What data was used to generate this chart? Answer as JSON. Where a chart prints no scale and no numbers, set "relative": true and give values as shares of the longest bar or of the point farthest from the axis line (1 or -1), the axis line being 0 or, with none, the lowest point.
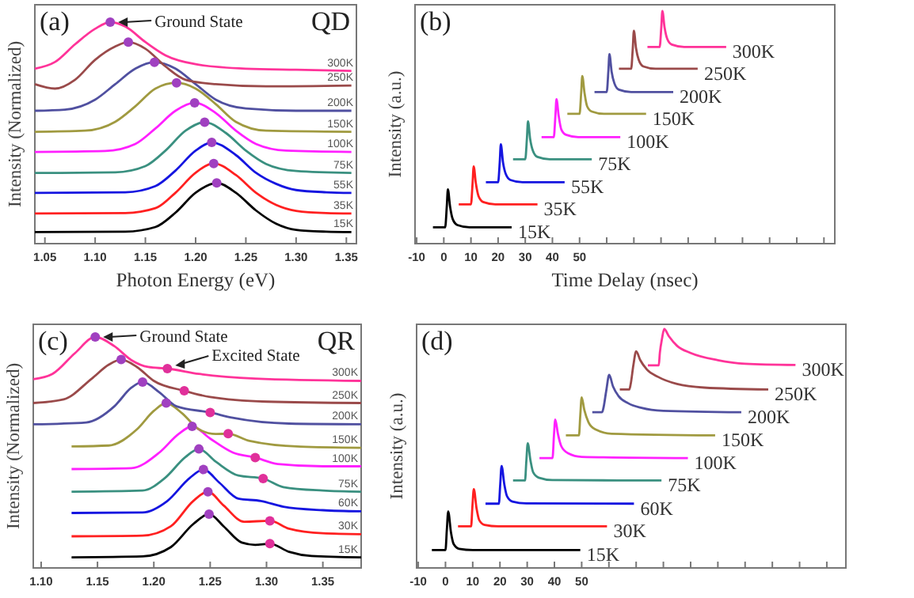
{
  "chart_data": [
    {
      "type": "line",
      "relative": true,
      "xlabel": "Photon Energy (eV)",
      "ylabel": "Intensity (Normalized)",
      "xlim": [
        1.04,
        1.36
      ],
      "xticks": [
        1.05,
        {
          "value": 1.1,
          "label": "1.10"
        },
        1.15,
        {
          "value": 1.2,
          "label": "1.20"
        },
        1.25,
        {
          "value": 1.3,
          "label": "1.30"
        },
        1.35
      ],
      "legend": false,
      "grid": false,
      "annotations": [
        "(a)",
        "QD",
        {
          "text": "Ground State",
          "x": 1.115,
          "y": 1.0
        }
      ],
      "series": [
        {
          "name": "15K",
          "color": "#000000",
          "x": [
            1.04,
            1.13,
            1.16,
            1.18,
            1.2,
            1.221,
            1.24,
            1.26,
            1.28,
            1.3,
            1.33,
            1.355
          ],
          "values": [
            0.052,
            0.054,
            0.075,
            0.14,
            0.23,
            0.274,
            0.23,
            0.15,
            0.09,
            0.062,
            0.054,
            0.052
          ]
        },
        {
          "name": "35K",
          "color": "#ff2020",
          "x": [
            1.04,
            1.13,
            1.16,
            1.18,
            1.2,
            1.218,
            1.24,
            1.26,
            1.28,
            1.3,
            1.33,
            1.355
          ],
          "values": [
            0.136,
            0.138,
            0.16,
            0.23,
            0.32,
            0.362,
            0.31,
            0.23,
            0.175,
            0.148,
            0.138,
            0.136
          ]
        },
        {
          "name": "55K",
          "color": "#1515e0",
          "x": [
            1.04,
            1.13,
            1.16,
            1.18,
            1.2,
            1.216,
            1.24,
            1.26,
            1.28,
            1.3,
            1.33,
            1.355
          ],
          "values": [
            0.229,
            0.232,
            0.26,
            0.33,
            0.42,
            0.457,
            0.4,
            0.32,
            0.27,
            0.242,
            0.232,
            0.229
          ]
        },
        {
          "name": "75K",
          "color": "#3a9080",
          "x": [
            1.04,
            1.12,
            1.15,
            1.17,
            1.19,
            1.209,
            1.23,
            1.25,
            1.27,
            1.3,
            1.355
          ],
          "values": [
            0.319,
            0.322,
            0.35,
            0.42,
            0.51,
            0.548,
            0.5,
            0.42,
            0.36,
            0.328,
            0.319
          ]
        },
        {
          "name": "100K",
          "color": "#ff20ff",
          "x": [
            1.04,
            1.11,
            1.14,
            1.16,
            1.18,
            1.199,
            1.22,
            1.24,
            1.26,
            1.29,
            1.355
          ],
          "values": [
            0.414,
            0.418,
            0.45,
            0.52,
            0.6,
            0.636,
            0.59,
            0.51,
            0.45,
            0.42,
            0.414
          ]
        },
        {
          "name": "150K",
          "color": "#a09a40",
          "x": [
            1.04,
            1.09,
            1.12,
            1.14,
            1.16,
            1.181,
            1.2,
            1.22,
            1.24,
            1.27,
            1.355
          ],
          "values": [
            0.505,
            0.51,
            0.55,
            0.62,
            0.7,
            0.726,
            0.7,
            0.63,
            0.55,
            0.51,
            0.505
          ]
        },
        {
          "name": "200K",
          "color": "#5050a0",
          "x": [
            1.04,
            1.07,
            1.1,
            1.12,
            1.14,
            1.159,
            1.18,
            1.2,
            1.22,
            1.25,
            1.3,
            1.355
          ],
          "values": [
            0.6,
            0.605,
            0.65,
            0.72,
            0.79,
            0.819,
            0.79,
            0.72,
            0.65,
            0.61,
            0.6,
            0.6
          ]
        },
        {
          "name": "250K",
          "color": "#9a4a4a",
          "x": [
            1.04,
            1.06,
            1.08,
            1.1,
            1.12,
            1.133,
            1.15,
            1.17,
            1.19,
            1.22,
            1.27,
            1.355
          ],
          "values": [
            0.72,
            0.7,
            0.74,
            0.83,
            0.89,
            0.91,
            0.88,
            0.8,
            0.74,
            0.72,
            0.71,
            0.714
          ]
        },
        {
          "name": "300K",
          "color": "#ff3399",
          "x": [
            1.04,
            1.06,
            1.08,
            1.1,
            1.115,
            1.13,
            1.15,
            1.17,
            1.2,
            1.25,
            1.3,
            1.355
          ],
          "values": [
            0.79,
            0.82,
            0.9,
            0.97,
            1.0,
            0.98,
            0.91,
            0.85,
            0.81,
            0.79,
            0.785,
            0.78
          ]
        },
        {
          "type": "scatter",
          "marker": "circle",
          "color": "#a040c0",
          "x": [
            1.221,
            1.218,
            1.216,
            1.209,
            1.199,
            1.181,
            1.159,
            1.133,
            1.115
          ],
          "values": [
            0.274,
            0.362,
            0.457,
            0.548,
            0.636,
            0.726,
            0.819,
            0.91,
            1.0
          ]
        }
      ]
    },
    {
      "type": "line",
      "relative": true,
      "xlabel": "Time Delay (nsec)",
      "ylabel": "Intensity (a.u.)",
      "xlim": [
        -10.6,
        144
      ],
      "xticks": [
        -10,
        0,
        10,
        20,
        30,
        40,
        50,
        {
          "value": 60,
          "label": null
        },
        {
          "value": 70,
          "label": null
        },
        {
          "value": 80,
          "label": null
        },
        {
          "value": 90,
          "label": null
        },
        {
          "value": 100,
          "label": null
        },
        {
          "value": 110,
          "label": null
        },
        {
          "value": 120,
          "label": null
        },
        {
          "value": 130,
          "label": null
        },
        {
          "value": 140,
          "label": null
        }
      ],
      "legend": false,
      "grid": false,
      "annotations": [
        "(b)"
      ],
      "series": [
        {
          "name": "15K",
          "color": "#000000",
          "x": [
            -4,
            0.5,
            1.1,
            1.5,
            2.3,
            3.3,
            5,
            9.5,
            25
          ],
          "values": [
            0.07,
            0.07,
            0.16,
            0.233,
            0.16,
            0.105,
            0.08,
            0.07,
            0.07
          ]
        },
        {
          "name": "35K",
          "color": "#ff2020",
          "x": [
            5.5,
            10,
            10.6,
            11,
            11.8,
            12.8,
            14.5,
            19,
            34.5
          ],
          "values": [
            0.169,
            0.169,
            0.26,
            0.332,
            0.26,
            0.204,
            0.179,
            0.169,
            0.169
          ]
        },
        {
          "name": "55K",
          "color": "#1515e0",
          "x": [
            15.5,
            20,
            20.6,
            21,
            21.8,
            22.8,
            24.5,
            29,
            44.5
          ],
          "values": [
            0.264,
            0.264,
            0.35,
            0.427,
            0.35,
            0.3,
            0.274,
            0.264,
            0.264
          ]
        },
        {
          "name": "75K",
          "color": "#3a9080",
          "x": [
            25.5,
            30,
            30.6,
            31,
            31.8,
            32.8,
            34.5,
            39,
            54.5
          ],
          "values": [
            0.363,
            0.363,
            0.45,
            0.526,
            0.45,
            0.4,
            0.373,
            0.363,
            0.363
          ]
        },
        {
          "name": "100K",
          "color": "#ff20ff",
          "x": [
            36,
            40.5,
            41.1,
            41.5,
            42.3,
            43.3,
            45,
            49.5,
            65
          ],
          "values": [
            0.458,
            0.458,
            0.55,
            0.621,
            0.55,
            0.49,
            0.468,
            0.458,
            0.458
          ]
        },
        {
          "name": "150K",
          "color": "#a09a40",
          "x": [
            45.5,
            50,
            50.6,
            51,
            51.8,
            52.8,
            54.5,
            59,
            74.5
          ],
          "values": [
            0.558,
            0.558,
            0.65,
            0.721,
            0.65,
            0.59,
            0.568,
            0.558,
            0.558
          ]
        },
        {
          "name": "200K",
          "color": "#5050a0",
          "x": [
            55.5,
            60,
            60.6,
            61,
            61.8,
            62.8,
            64.5,
            69,
            84.5
          ],
          "values": [
            0.652,
            0.652,
            0.74,
            0.815,
            0.74,
            0.69,
            0.662,
            0.652,
            0.652
          ]
        },
        {
          "name": "250K",
          "color": "#9a4a4a",
          "x": [
            64.5,
            69,
            69.6,
            70,
            70.8,
            71.8,
            73.5,
            78,
            93.5
          ],
          "values": [
            0.752,
            0.752,
            0.84,
            0.915,
            0.84,
            0.79,
            0.762,
            0.752,
            0.752
          ]
        },
        {
          "name": "300K",
          "color": "#ff3399",
          "x": [
            75,
            79.5,
            80.1,
            80.5,
            81.3,
            82.3,
            84,
            88.5,
            104
          ],
          "values": [
            0.846,
            0.846,
            0.93,
            1.0,
            0.93,
            0.88,
            0.856,
            0.846,
            0.846
          ]
        }
      ]
    },
    {
      "type": "line",
      "relative": true,
      "ylabel": "Intensity (Normalized)",
      "xlim": [
        1.093,
        1.384
      ],
      "xticks": [
        {
          "value": 1.1,
          "label": "1.10"
        },
        1.15,
        {
          "value": 1.2,
          "label": "1.20"
        },
        1.25,
        {
          "value": 1.3,
          "label": "1.30"
        },
        1.35
      ],
      "legend": false,
      "grid": false,
      "annotations": [
        "(c)",
        "QR",
        {
          "text": "Ground State",
          "x": 1.148,
          "y": 1.0
        },
        {
          "text": "Excited State",
          "x": 1.212,
          "y": 0.863
        }
      ],
      "series": [
        {
          "name": "15K",
          "color": "#000000",
          "x": [
            1.127,
            1.19,
            1.215,
            1.235,
            1.249,
            1.262,
            1.278,
            1.29,
            1.303,
            1.32,
            1.34,
            1.384
          ],
          "values": [
            0.046,
            0.05,
            0.09,
            0.19,
            0.233,
            0.18,
            0.11,
            0.1,
            0.105,
            0.07,
            0.052,
            0.046
          ]
        },
        {
          "name": "30K",
          "color": "#ff2020",
          "x": [
            1.127,
            1.19,
            1.215,
            1.235,
            1.248,
            1.262,
            1.28,
            1.303,
            1.32,
            1.35,
            1.384
          ],
          "values": [
            0.137,
            0.14,
            0.18,
            0.29,
            0.33,
            0.27,
            0.2,
            0.204,
            0.17,
            0.15,
            0.146
          ]
        },
        {
          "name": "60K",
          "color": "#1515e0",
          "x": [
            1.127,
            1.19,
            1.212,
            1.232,
            1.244,
            1.258,
            1.275,
            1.295,
            1.315,
            1.35,
            1.384
          ],
          "values": [
            0.238,
            0.24,
            0.29,
            0.39,
            0.426,
            0.37,
            0.3,
            0.29,
            0.265,
            0.25,
            0.245
          ]
        },
        {
          "name": "75K",
          "color": "#3a9080",
          "x": [
            1.127,
            1.19,
            1.21,
            1.228,
            1.24,
            1.255,
            1.275,
            1.297,
            1.315,
            1.35,
            1.384
          ],
          "values": [
            0.33,
            0.335,
            0.39,
            0.48,
            0.515,
            0.46,
            0.4,
            0.387,
            0.35,
            0.335,
            0.33
          ]
        },
        {
          "name": "100K",
          "color": "#ff20ff",
          "x": [
            1.127,
            1.18,
            1.205,
            1.222,
            1.234,
            1.25,
            1.27,
            1.29,
            1.31,
            1.35,
            1.384
          ],
          "values": [
            0.428,
            0.432,
            0.5,
            0.58,
            0.613,
            0.56,
            0.5,
            0.478,
            0.45,
            0.44,
            0.44
          ]
        },
        {
          "name": "150K",
          "color": "#a09a40",
          "x": [
            1.127,
            1.16,
            1.185,
            1.2,
            1.211,
            1.225,
            1.24,
            1.255,
            1.266,
            1.285,
            1.33,
            1.384
          ],
          "values": [
            0.526,
            0.53,
            0.6,
            0.68,
            0.714,
            0.67,
            0.6,
            0.58,
            0.581,
            0.55,
            0.525,
            0.52
          ]
        },
        {
          "name": "200K",
          "color": "#5050a0",
          "x": [
            1.093,
            1.14,
            1.165,
            1.18,
            1.19,
            1.205,
            1.22,
            1.25,
            1.27,
            1.32,
            1.384
          ],
          "values": [
            0.622,
            0.63,
            0.7,
            0.78,
            0.805,
            0.76,
            0.7,
            0.673,
            0.65,
            0.625,
            0.622
          ]
        },
        {
          "name": "250K",
          "color": "#9a4a4a",
          "x": [
            1.093,
            1.12,
            1.145,
            1.16,
            1.171,
            1.185,
            1.2,
            1.227,
            1.25,
            1.3,
            1.384
          ],
          "values": [
            0.714,
            0.73,
            0.82,
            0.88,
            0.902,
            0.87,
            0.81,
            0.767,
            0.74,
            0.72,
            0.714
          ]
        },
        {
          "name": "300K",
          "color": "#ff3399",
          "x": [
            1.093,
            1.11,
            1.13,
            1.148,
            1.165,
            1.18,
            1.195,
            1.212,
            1.24,
            1.29,
            1.384
          ],
          "values": [
            0.817,
            0.84,
            0.93,
            1.0,
            0.96,
            0.9,
            0.87,
            0.863,
            0.84,
            0.82,
            0.81
          ]
        },
        {
          "type": "scatter",
          "marker": "circle",
          "color": "#a040c0",
          "x": [
            1.249,
            1.248,
            1.244,
            1.24,
            1.234,
            1.211,
            1.19,
            1.171,
            1.148
          ],
          "values": [
            0.233,
            0.33,
            0.426,
            0.515,
            0.613,
            0.714,
            0.805,
            0.902,
            1.0
          ]
        },
        {
          "type": "scatter",
          "marker": "circle",
          "color": "#e0309a",
          "x": [
            1.303,
            1.303,
            1.297,
            1.29,
            1.266,
            1.25,
            1.227,
            1.212
          ],
          "values": [
            0.105,
            0.204,
            0.387,
            0.478,
            0.581,
            0.673,
            0.767,
            0.863
          ]
        }
      ]
    },
    {
      "type": "line",
      "relative": true,
      "ylabel": "Intensity (a.u.)",
      "xlim": [
        -10.6,
        147
      ],
      "xticks": [
        -10,
        0,
        10,
        20,
        30,
        40,
        50,
        {
          "value": 60,
          "label": null
        },
        {
          "value": 70,
          "label": null
        },
        {
          "value": 80,
          "label": null
        },
        {
          "value": 90,
          "label": null
        },
        {
          "value": 100,
          "label": null
        },
        {
          "value": 110,
          "label": null
        },
        {
          "value": 120,
          "label": null
        },
        {
          "value": 130,
          "label": null
        },
        {
          "value": 140,
          "label": null
        }
      ],
      "legend": false,
      "grid": false,
      "annotations": [
        "(d)"
      ],
      "series": [
        {
          "name": "15K",
          "color": "#000000",
          "x": [
            -5,
            0,
            0.5,
            1,
            2,
            3,
            5,
            10,
            49.5
          ],
          "values": [
            0.075,
            0.075,
            0.16,
            0.236,
            0.15,
            0.1,
            0.08,
            0.075,
            0.075
          ]
        },
        {
          "name": "30K",
          "color": "#ff2020",
          "x": [
            4.6,
            9.4,
            9.9,
            10.4,
            11.4,
            12.4,
            14.4,
            19.4,
            59.3
          ],
          "values": [
            0.174,
            0.174,
            0.26,
            0.33,
            0.25,
            0.2,
            0.18,
            0.174,
            0.174
          ]
        },
        {
          "name": "60K",
          "color": "#1515e0",
          "x": [
            14.7,
            19.6,
            20.1,
            20.6,
            21.6,
            22.6,
            24.6,
            29.6,
            69.2
          ],
          "values": [
            0.269,
            0.269,
            0.35,
            0.427,
            0.35,
            0.3,
            0.278,
            0.27,
            0.269
          ]
        },
        {
          "name": "75K",
          "color": "#3a9080",
          "x": [
            24.8,
            29.2,
            29.7,
            30.2,
            31.2,
            32.2,
            34.2,
            39.2,
            79.3
          ],
          "values": [
            0.366,
            0.366,
            0.45,
            0.522,
            0.45,
            0.4,
            0.378,
            0.368,
            0.366
          ]
        },
        {
          "name": "100K",
          "color": "#ff20ff",
          "x": [
            34.5,
            39.3,
            39.8,
            40.3,
            41.3,
            42.5,
            45,
            50,
            89
          ],
          "values": [
            0.46,
            0.46,
            0.55,
            0.621,
            0.56,
            0.51,
            0.48,
            0.465,
            0.46
          ]
        },
        {
          "name": "150K",
          "color": "#a09a40",
          "x": [
            44.2,
            49,
            49.5,
            50,
            51,
            52.5,
            55,
            61,
            99
          ],
          "values": [
            0.555,
            0.555,
            0.64,
            0.714,
            0.66,
            0.61,
            0.58,
            0.562,
            0.555
          ]
        },
        {
          "name": "200K",
          "color": "#5050a0",
          "x": [
            53.9,
            57.5,
            58,
            59,
            60.1,
            61.5,
            63.5,
            67,
            72,
            80,
            108.6
          ],
          "values": [
            0.652,
            0.652,
            0.67,
            0.74,
            0.808,
            0.76,
            0.72,
            0.69,
            0.67,
            0.658,
            0.652
          ]
        },
        {
          "name": "250K",
          "color": "#9a4a4a",
          "x": [
            64,
            67.5,
            68,
            69,
            70,
            71.5,
            74,
            78,
            85,
            95,
            118.5
          ],
          "values": [
            0.747,
            0.747,
            0.77,
            0.85,
            0.907,
            0.87,
            0.83,
            0.8,
            0.77,
            0.755,
            0.747
          ]
        },
        {
          "name": "300K",
          "color": "#ff3399",
          "x": [
            74.3,
            78.3,
            78.7,
            79.5,
            80.3,
            82,
            85,
            90,
            100,
            110,
            128.5
          ],
          "values": [
            0.848,
            0.848,
            0.9,
            0.96,
            1.0,
            0.97,
            0.93,
            0.9,
            0.87,
            0.855,
            0.85
          ]
        }
      ]
    }
  ]
}
